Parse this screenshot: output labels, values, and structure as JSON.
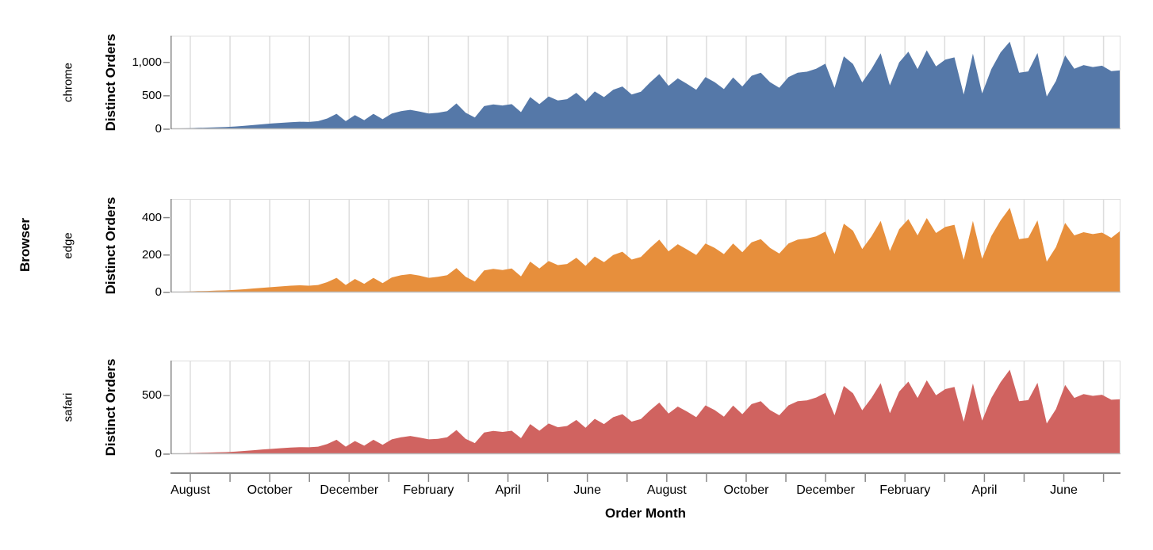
{
  "chart_data": {
    "type": "area",
    "title": "",
    "row_title": "Browser",
    "xlabel": "Order Month",
    "ylabel": "Distinct Orders",
    "x_unit": "week",
    "x_span_months": 24,
    "x_tick_labels": [
      "August",
      "October",
      "December",
      "February",
      "April",
      "June",
      "August",
      "October",
      "December",
      "February",
      "April",
      "June"
    ],
    "grid": "vertical-monthly-gridlines",
    "legend": "none",
    "colors": {
      "grid": "#dddddd",
      "domain": "#888888",
      "panel_border": "#dddddd",
      "panel_bottom": "#bbbbbb",
      "text": "#000000"
    },
    "facets": [
      {
        "name": "chrome",
        "color": "#5578a8",
        "ylim": [
          0,
          1400
        ],
        "yticks": [
          {
            "value": 0,
            "label": "0"
          },
          {
            "value": 500,
            "label": "500"
          },
          {
            "value": 1000,
            "label": "1,000"
          }
        ],
        "values": [
          8,
          12,
          16,
          20,
          24,
          28,
          32,
          40,
          50,
          62,
          74,
          85,
          95,
          105,
          112,
          108,
          120,
          160,
          230,
          120,
          210,
          135,
          230,
          150,
          235,
          270,
          290,
          265,
          235,
          245,
          270,
          385,
          245,
          175,
          345,
          370,
          355,
          375,
          255,
          480,
          375,
          490,
          430,
          450,
          545,
          420,
          565,
          480,
          590,
          640,
          520,
          560,
          700,
          825,
          650,
          760,
          680,
          590,
          780,
          705,
          600,
          775,
          640,
          800,
          845,
          705,
          620,
          780,
          845,
          860,
          905,
          980,
          620,
          1090,
          975,
          700,
          900,
          1135,
          655,
          1000,
          1160,
          900,
          1180,
          940,
          1040,
          1075,
          520,
          1130,
          535,
          900,
          1150,
          1310,
          845,
          865,
          1140,
          490,
          720,
          1105,
          905,
          960,
          930,
          950,
          870,
          880
        ]
      },
      {
        "name": "edge",
        "color": "#e78f3c",
        "ylim": [
          0,
          500
        ],
        "yticks": [
          {
            "value": 0,
            "label": "0"
          },
          {
            "value": 200,
            "label": "200"
          },
          {
            "value": 400,
            "label": "400"
          }
        ],
        "values": [
          3,
          4,
          5,
          7,
          8,
          10,
          11,
          14,
          17,
          21,
          25,
          29,
          32,
          36,
          38,
          36,
          40,
          55,
          78,
          40,
          72,
          46,
          78,
          50,
          80,
          92,
          98,
          90,
          78,
          84,
          92,
          130,
          84,
          58,
          118,
          126,
          120,
          128,
          86,
          165,
          128,
          168,
          146,
          152,
          185,
          142,
          192,
          162,
          200,
          218,
          176,
          190,
          238,
          282,
          220,
          258,
          230,
          200,
          262,
          238,
          205,
          262,
          215,
          268,
          285,
          238,
          208,
          262,
          282,
          288,
          300,
          325,
          205,
          368,
          330,
          232,
          300,
          382,
          222,
          338,
          392,
          305,
          398,
          318,
          350,
          362,
          175,
          382,
          180,
          302,
          385,
          452,
          285,
          292,
          385,
          165,
          242,
          372,
          305,
          322,
          312,
          320,
          292,
          330
        ]
      },
      {
        "name": "safari",
        "color": "#d06360",
        "ylim": [
          0,
          800
        ],
        "yticks": [
          {
            "value": 0,
            "label": "0"
          },
          {
            "value": 500,
            "label": "500"
          }
        ],
        "values": [
          4,
          6,
          9,
          11,
          13,
          15,
          17,
          21,
          27,
          33,
          40,
          45,
          51,
          56,
          60,
          58,
          64,
          86,
          123,
          64,
          112,
          72,
          123,
          80,
          126,
          144,
          155,
          142,
          126,
          131,
          144,
          206,
          131,
          94,
          185,
          198,
          190,
          200,
          136,
          257,
          200,
          262,
          230,
          241,
          292,
          225,
          302,
          257,
          316,
          342,
          278,
          300,
          374,
          441,
          348,
          407,
          364,
          316,
          417,
          377,
          321,
          415,
          342,
          428,
          452,
          377,
          332,
          417,
          452,
          460,
          484,
          524,
          332,
          583,
          521,
          374,
          481,
          607,
          350,
          535,
          620,
          481,
          631,
          503,
          556,
          575,
          278,
          604,
          286,
          481,
          615,
          722,
          452,
          462,
          610,
          262,
          385,
          591,
          481,
          513,
          498,
          508,
          465,
          470
        ]
      }
    ]
  }
}
